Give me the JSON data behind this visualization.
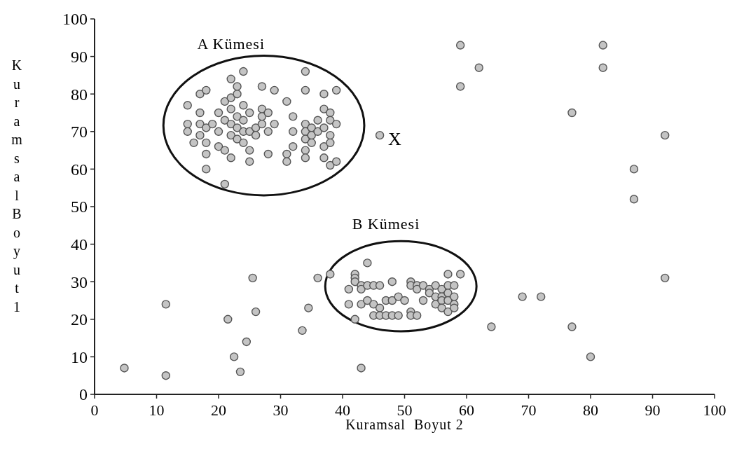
{
  "chart_data": {
    "type": "scatter",
    "xlabel": "Kuramsal  Boyut 2",
    "ylabel": "Kuramsal Boyut 1",
    "xlim": [
      0,
      100
    ],
    "ylim": [
      0,
      100
    ],
    "xticks": [
      0,
      10,
      20,
      30,
      40,
      50,
      60,
      70,
      80,
      90,
      100
    ],
    "yticks": [
      0,
      10,
      20,
      30,
      40,
      50,
      60,
      70,
      80,
      90,
      100
    ],
    "grid": false,
    "marker": "circle",
    "annotations": [
      "A Kümesi",
      "B Kümesi",
      {
        "text": "X",
        "x": 46,
        "y": 69
      }
    ],
    "series": [
      {
        "color": "#c4c4c4",
        "x": [
          4.8,
          11.5,
          11.5,
          21.5,
          22.5,
          24.5,
          23.5,
          25.5,
          26,
          33.5,
          34.5,
          36,
          38,
          43,
          46,
          59,
          62,
          59,
          82,
          82,
          77,
          92,
          87,
          87,
          92,
          69,
          72,
          64,
          77,
          80,
          15,
          15,
          15,
          16,
          17,
          17,
          17,
          17,
          18,
          18,
          18,
          18,
          18,
          19,
          20,
          20,
          20,
          21,
          21,
          21,
          21,
          22,
          22,
          22,
          22,
          22,
          22,
          23,
          23,
          23,
          23,
          23,
          24,
          24,
          24,
          24,
          24,
          25,
          25,
          25,
          25,
          26,
          26,
          27,
          27,
          27,
          27,
          28,
          28,
          28,
          29,
          29,
          31,
          31,
          31,
          32,
          32,
          32,
          34,
          34,
          34,
          34,
          34,
          34,
          34,
          35,
          35,
          35,
          36,
          36,
          37,
          37,
          37,
          37,
          37,
          38,
          38,
          38,
          38,
          38,
          39,
          39,
          39,
          42,
          42,
          42,
          43,
          43,
          43,
          44,
          44,
          44,
          45,
          45,
          45,
          46,
          46,
          46,
          47,
          47,
          48,
          48,
          48,
          49,
          49,
          50,
          51,
          51,
          51,
          51,
          52,
          52,
          52,
          53,
          53,
          54,
          54,
          55,
          55,
          55,
          56,
          56,
          56,
          56,
          57,
          57,
          57,
          57,
          57,
          58,
          58,
          58,
          58,
          59,
          41,
          41,
          42
        ],
        "values": [
          7,
          24,
          5,
          20,
          10,
          14,
          6,
          31,
          22,
          17,
          23,
          31,
          32,
          7,
          69,
          93,
          87,
          82,
          93,
          87,
          75,
          69,
          60,
          52,
          31,
          26,
          26,
          18,
          18,
          10,
          77,
          72,
          70,
          67,
          80,
          75,
          72,
          69,
          81,
          71,
          67,
          64,
          60,
          72,
          75,
          70,
          66,
          78,
          73,
          65,
          56,
          84,
          79,
          76,
          72,
          69,
          63,
          82,
          80,
          74,
          71,
          68,
          86,
          77,
          73,
          70,
          67,
          75,
          70,
          65,
          62,
          71,
          69,
          82,
          76,
          74,
          72,
          75,
          70,
          64,
          81,
          72,
          78,
          64,
          62,
          74,
          70,
          66,
          86,
          81,
          72,
          70,
          68,
          65,
          63,
          71,
          69,
          67,
          73,
          70,
          80,
          76,
          71,
          66,
          63,
          75,
          73,
          69,
          67,
          61,
          81,
          72,
          62,
          32,
          31,
          30,
          29,
          28,
          24,
          35,
          29,
          25,
          29,
          24,
          21,
          29,
          23,
          21,
          25,
          21,
          30,
          25,
          21,
          26,
          21,
          25,
          30,
          29,
          22,
          21,
          29,
          28,
          21,
          29,
          25,
          28,
          27,
          29,
          26,
          24,
          28,
          26,
          25,
          23,
          32,
          29,
          27,
          25,
          22,
          29,
          26,
          24,
          23,
          32,
          28,
          24,
          20
        ]
      }
    ]
  }
}
